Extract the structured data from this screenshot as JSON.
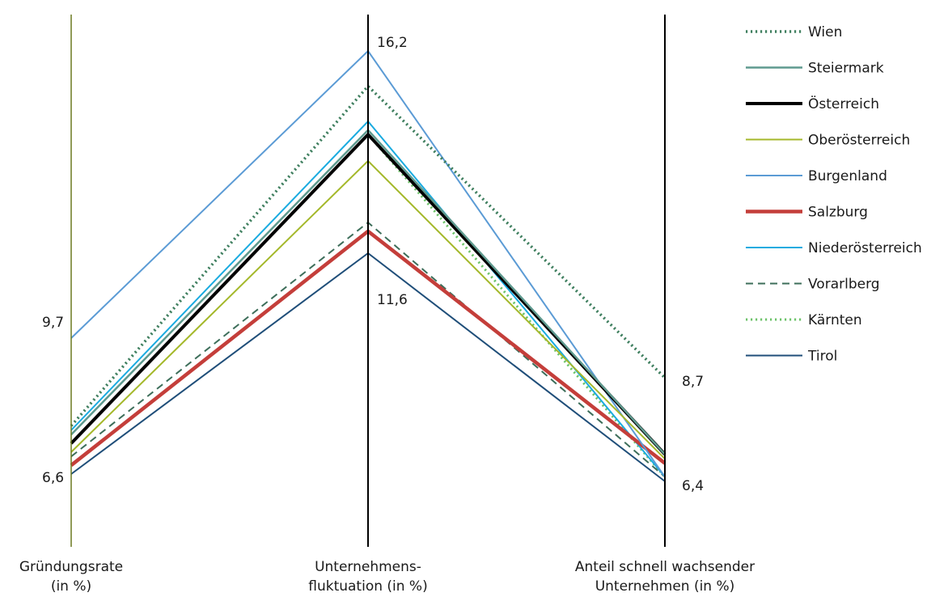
{
  "chart_data": {
    "type": "line",
    "subtype": "parallel-coordinates",
    "axes": [
      {
        "label": [
          "Gründungsrate",
          "(in %)"
        ],
        "range": [
          6.6,
          9.7
        ],
        "tick_labels": [
          "9,7",
          "6,6"
        ]
      },
      {
        "label": [
          "Unternehmens-",
          "fluktuation (in %)"
        ],
        "range": [
          11.6,
          16.2
        ],
        "tick_labels": [
          "16,2",
          "11,6"
        ]
      },
      {
        "label": [
          "Anteil schnell wachsender",
          "Unternehmen (in %)"
        ],
        "range": [
          6.4,
          8.7
        ],
        "tick_labels": [
          "8,7",
          "6,4"
        ]
      }
    ],
    "series": [
      {
        "name": "Wien",
        "values": [
          7.7,
          15.4,
          8.7
        ],
        "color": "#3f7f5f",
        "dash": "dotted",
        "width": 3.5
      },
      {
        "name": "Steiermark",
        "values": [
          7.5,
          14.4,
          7.0
        ],
        "color": "#5f9a8f",
        "dash": "solid",
        "width": 2.5
      },
      {
        "name": "Österreich",
        "values": [
          7.3,
          14.3,
          7.0
        ],
        "color": "#000000",
        "dash": "solid",
        "width": 4
      },
      {
        "name": "Oberösterreich",
        "values": [
          7.1,
          13.7,
          6.9
        ],
        "color": "#a4b82a",
        "dash": "solid",
        "width": 2
      },
      {
        "name": "Burgenland",
        "values": [
          9.7,
          16.2,
          6.5
        ],
        "color": "#5b9bd5",
        "dash": "solid",
        "width": 2
      },
      {
        "name": "Salzburg",
        "values": [
          6.8,
          12.1,
          6.8
        ],
        "color": "#c43e3a",
        "dash": "solid",
        "width": 4.5
      },
      {
        "name": "Niederösterreich",
        "values": [
          7.6,
          14.6,
          6.5
        ],
        "color": "#1aabe0",
        "dash": "solid",
        "width": 2
      },
      {
        "name": "Vorarlberg",
        "values": [
          7.0,
          12.3,
          6.5
        ],
        "color": "#3d6e5a",
        "dash": "dashed",
        "width": 2
      },
      {
        "name": "Kärnten",
        "values": [
          7.3,
          14.3,
          6.5
        ],
        "color": "#6dc36a",
        "dash": "dotted",
        "width": 3
      },
      {
        "name": "Tirol",
        "values": [
          6.6,
          11.6,
          6.4
        ],
        "color": "#1f4e79",
        "dash": "solid",
        "width": 2
      }
    ],
    "legend_position": "right",
    "first_axis_color": "#6b7a20"
  }
}
